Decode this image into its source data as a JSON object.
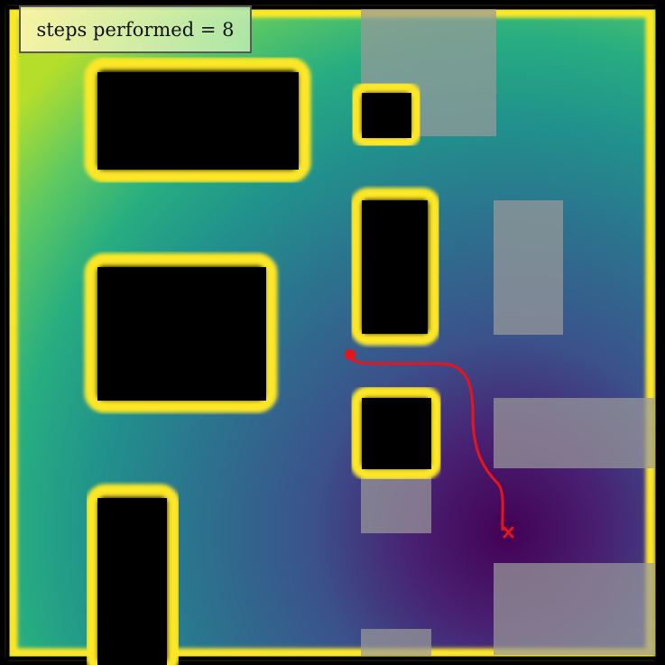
{
  "status": {
    "label": "steps performed",
    "equals": "=",
    "steps": "8"
  },
  "colors": {
    "wall_outline": "#fde725",
    "obstacle_fill": "#000000",
    "field_high": "#b5de2b",
    "field_low": "#440154",
    "path": "#e8141b",
    "overlay_patch": "#9a9a9a"
  },
  "icons": {
    "start": "start-dot-icon",
    "goal": "goal-x-icon"
  }
}
